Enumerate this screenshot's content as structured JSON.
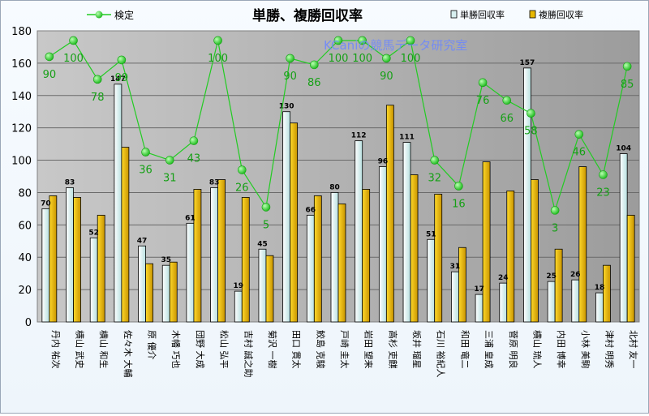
{
  "chart_data": {
    "type": "bar",
    "title": "単勝、複勝回収率",
    "watermark": "KCaniの競馬データ研究室",
    "xlabel": "",
    "ylabel": "",
    "ylim": [
      0,
      180
    ],
    "yticks": [
      0,
      20,
      40,
      60,
      80,
      100,
      120,
      140,
      160,
      180
    ],
    "grid": true,
    "legend_position": "top",
    "categories": [
      "丹内 祐次",
      "横山 武史",
      "横山 和生",
      "佐々木 大輔",
      "原 優介",
      "木幡 巧也",
      "団野 大成",
      "松山 弘平",
      "吉村 誠之助",
      "菊沢 一樹",
      "田口 貫太",
      "鮫島 克駿",
      "戸崎 圭太",
      "岩田 望来",
      "高杉 吏麒",
      "坂井 瑠星",
      "石川 裕紀人",
      "和田 竜二",
      "三浦 皇成",
      "菅原 明良",
      "横山 琉人",
      "内田 博幸",
      "小林 美駒",
      "津村 明秀",
      "北村 友一"
    ],
    "series": [
      {
        "name": "単勝回収率",
        "kind": "bar",
        "color": "#d8f0f0",
        "values": [
          70,
          83,
          52,
          147,
          47,
          35,
          61,
          83,
          19,
          45,
          130,
          66,
          80,
          112,
          96,
          111,
          51,
          31,
          17,
          24,
          157,
          25,
          26,
          18,
          104
        ]
      },
      {
        "name": "複勝回収率",
        "kind": "bar",
        "color": "#e8b800",
        "values": [
          78,
          77,
          66,
          108,
          36,
          37,
          82,
          88,
          77,
          41,
          123,
          78,
          73,
          82,
          134,
          91,
          79,
          46,
          99,
          81,
          88,
          45,
          96,
          35,
          66
        ]
      },
      {
        "name": "検定",
        "kind": "line",
        "color": "#22cc22",
        "label_color": "#16a016",
        "values": [
          90,
          100,
          78,
          99,
          36,
          31,
          43,
          100,
          26,
          5,
          90,
          86,
          100,
          100,
          90,
          100,
          32,
          16,
          76,
          66,
          58,
          3,
          46,
          23,
          85
        ],
        "plot_y": [
          164,
          174,
          150,
          162,
          105,
          100,
          112,
          174,
          94,
          71,
          163,
          159,
          174,
          174,
          163,
          174,
          100,
          84,
          148,
          137,
          129,
          69,
          116,
          91,
          158
        ]
      }
    ]
  }
}
